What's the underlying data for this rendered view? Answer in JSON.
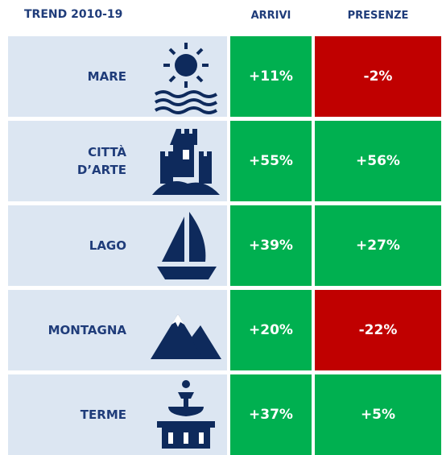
{
  "header": {
    "title": "TREND 2010-19",
    "columns": [
      "ARRIVI",
      "PRESENZE"
    ]
  },
  "colors": {
    "increase": "#00b050",
    "decrease": "#c00000"
  },
  "rows": [
    {
      "label": "MARE",
      "arrivi": "+11%",
      "presenze": "-2%"
    },
    {
      "label": "CITTÀ\nD’ARTE",
      "arrivi": "+55%",
      "presenze": "+56%"
    },
    {
      "label": "LAGO",
      "arrivi": "+39%",
      "presenze": "+27%"
    },
    {
      "label": "MONTAGNA",
      "arrivi": "+20%",
      "presenze": "-22%"
    },
    {
      "label": "TERME",
      "arrivi": "+37%",
      "presenze": "+5%"
    }
  ]
}
